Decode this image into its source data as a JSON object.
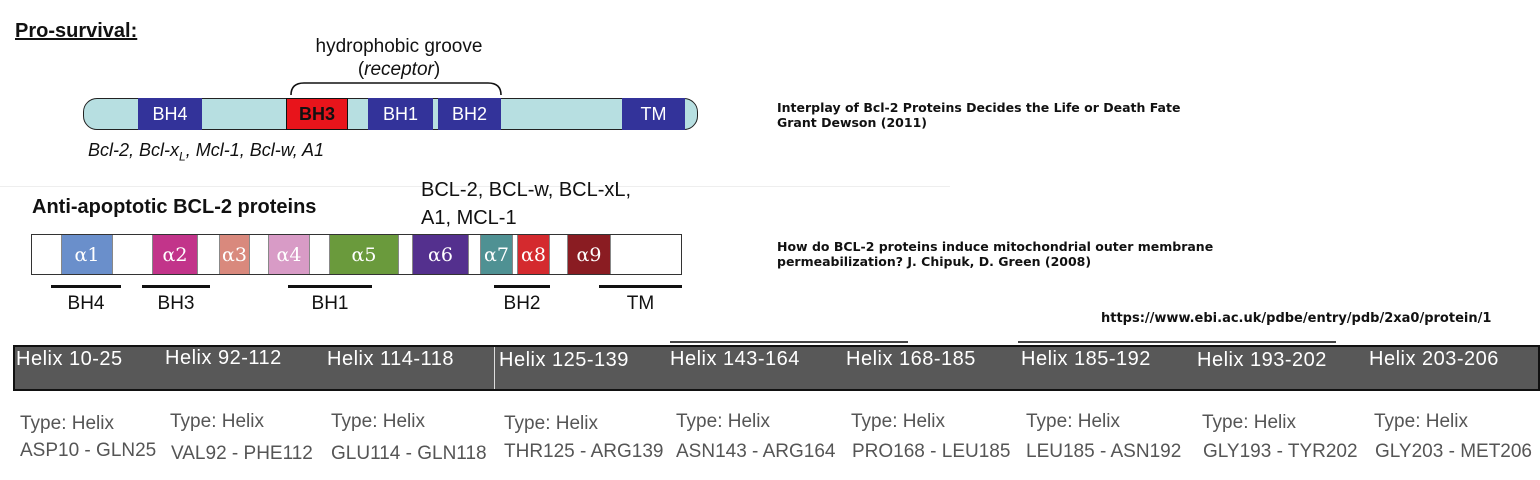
{
  "pro_survival": {
    "title": "Pro-survival:",
    "groove_label_line1": "hydrophobic groove",
    "groove_label_line2_open": "(",
    "groove_label_line2_italic": "receptor",
    "groove_label_line2_close": ")",
    "domains": [
      {
        "label": "BH4",
        "color": "#33339a"
      },
      {
        "label": "BH3",
        "color": "#e8141b"
      },
      {
        "label": "BH1",
        "color": "#33339a"
      },
      {
        "label": "BH2",
        "color": "#33339a"
      },
      {
        "label": "TM",
        "color": "#33339a"
      }
    ],
    "bar_color": "#b7dfe1",
    "caption_part1": "Bcl-2, Bcl-x",
    "caption_sub": "L",
    "caption_part2": ", Mcl-1, Bcl-w, A1"
  },
  "anti_apoptotic": {
    "title": "Anti-apoptotic BCL-2 proteins",
    "proteins_line1": "BCL-2, BCL-w, BCL-xL,",
    "proteins_line2": "A1, MCL-1",
    "helices": [
      {
        "label": "α1",
        "color": "#6a8fcb"
      },
      {
        "label": "α2",
        "color": "#c2348a"
      },
      {
        "label": "α3",
        "color": "#d9897d"
      },
      {
        "label": "α4",
        "color": "#d89bc6"
      },
      {
        "label": "α5",
        "color": "#6a9a3c"
      },
      {
        "label": "α6",
        "color": "#54308e"
      },
      {
        "label": "α7",
        "color": "#4f9193"
      },
      {
        "label": "α8",
        "color": "#d42a2e"
      },
      {
        "label": "α9",
        "color": "#8a1c22"
      }
    ],
    "bh_regions": [
      "BH4",
      "BH3",
      "BH1",
      "BH2",
      "TM"
    ]
  },
  "references": {
    "ref1_line1": "Interplay of Bcl-2 Proteins Decides the Life or Death Fate",
    "ref1_line2": "Grant Dewson (2011)",
    "ref2_line1": "How do BCL-2 proteins induce mitochondrial outer membrane",
    "ref2_line2": "permeabilization? J. Chipuk, D. Green (2008)",
    "url": "https://www.ebi.ac.uk/pdbe/entry/pdb/2xa0/protein/1"
  },
  "helix_table": [
    {
      "name": "Helix 10-25",
      "type": "Type: Helix",
      "range": "ASP10 - GLN25"
    },
    {
      "name": "Helix 92-112",
      "type": "Type: Helix",
      "range": "VAL92 - PHE112"
    },
    {
      "name": "Helix 114-118",
      "type": "Type: Helix",
      "range": "GLU114 - GLN118"
    },
    {
      "name": "Helix 125-139",
      "type": "Type: Helix",
      "range": "THR125 - ARG139"
    },
    {
      "name": "Helix 143-164",
      "type": "Type: Helix",
      "range": "ASN143 - ARG164"
    },
    {
      "name": "Helix 168-185",
      "type": "Type: Helix",
      "range": "PRO168 - LEU185"
    },
    {
      "name": "Helix 185-192",
      "type": "Type: Helix",
      "range": "LEU185 - ASN192"
    },
    {
      "name": "Helix 193-202",
      "type": "Type: Helix",
      "range": "GLY193 - TYR202"
    },
    {
      "name": "Helix 203-206",
      "type": "Type: Helix",
      "range": "GLY203 - MET206"
    }
  ]
}
